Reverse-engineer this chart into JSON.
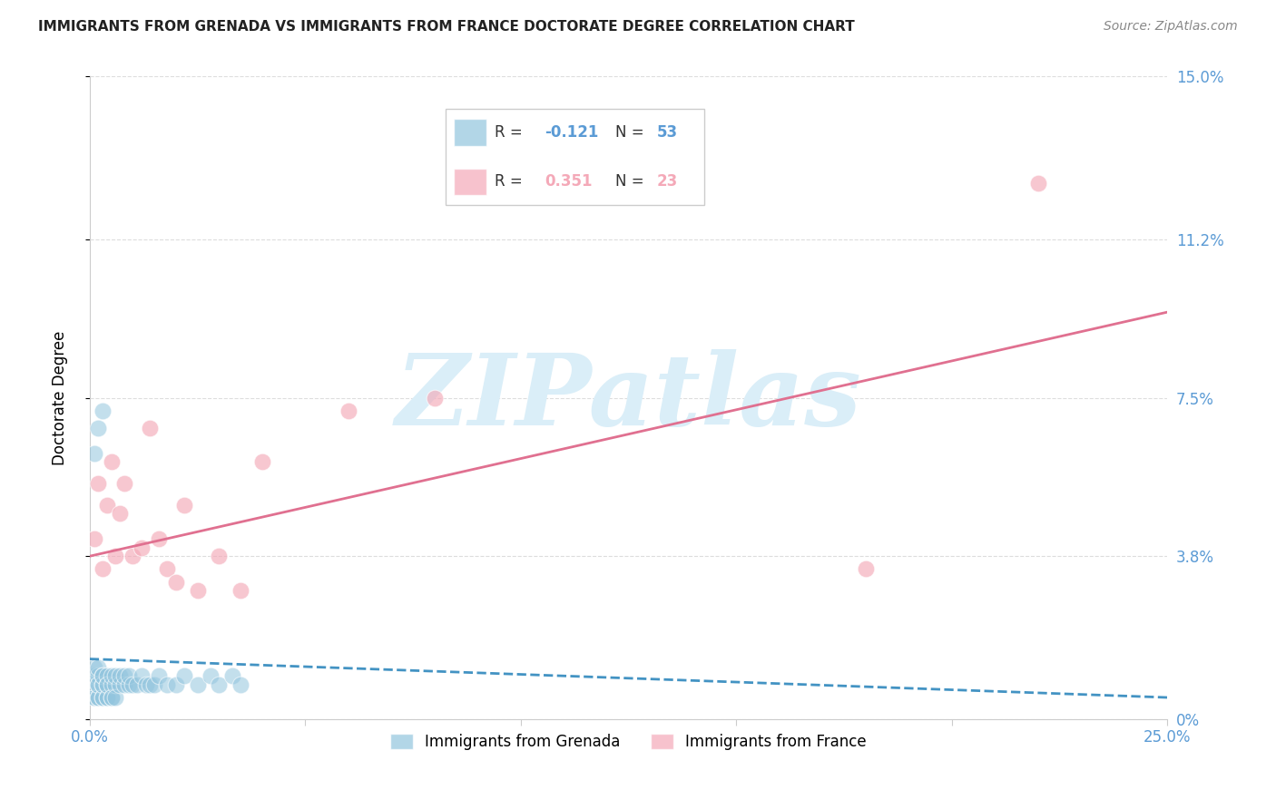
{
  "title": "IMMIGRANTS FROM GRENADA VS IMMIGRANTS FROM FRANCE DOCTORATE DEGREE CORRELATION CHART",
  "source": "Source: ZipAtlas.com",
  "ylabel": "Doctorate Degree",
  "xlim": [
    0.0,
    0.25
  ],
  "ylim": [
    0.0,
    0.15
  ],
  "xticks": [
    0.0,
    0.05,
    0.1,
    0.15,
    0.2,
    0.25
  ],
  "yticks": [
    0.0,
    0.038,
    0.075,
    0.112,
    0.15
  ],
  "ytick_labels_right": [
    "0%",
    "3.8%",
    "7.5%",
    "11.2%",
    "15.0%"
  ],
  "grenada_color": "#92c5de",
  "france_color": "#f4a9b8",
  "grenada_line_color": "#4393c3",
  "france_line_color": "#e07090",
  "axis_label_color": "#5b9bd5",
  "watermark": "ZIPatlas",
  "watermark_color": "#daeef8",
  "background_color": "#ffffff",
  "grenada_x": [
    0.001,
    0.001,
    0.001,
    0.001,
    0.001,
    0.002,
    0.002,
    0.002,
    0.002,
    0.002,
    0.002,
    0.003,
    0.003,
    0.003,
    0.003,
    0.003,
    0.003,
    0.004,
    0.004,
    0.004,
    0.004,
    0.004,
    0.005,
    0.005,
    0.005,
    0.005,
    0.006,
    0.006,
    0.006,
    0.007,
    0.007,
    0.008,
    0.008,
    0.009,
    0.009,
    0.01,
    0.011,
    0.012,
    0.013,
    0.014,
    0.015,
    0.016,
    0.018,
    0.02,
    0.022,
    0.025,
    0.028,
    0.03,
    0.033,
    0.035,
    0.001,
    0.002,
    0.003
  ],
  "grenada_y": [
    0.005,
    0.008,
    0.01,
    0.012,
    0.005,
    0.005,
    0.008,
    0.01,
    0.012,
    0.005,
    0.008,
    0.005,
    0.008,
    0.01,
    0.005,
    0.008,
    0.01,
    0.005,
    0.008,
    0.01,
    0.005,
    0.008,
    0.005,
    0.008,
    0.01,
    0.005,
    0.008,
    0.01,
    0.005,
    0.008,
    0.01,
    0.008,
    0.01,
    0.008,
    0.01,
    0.008,
    0.008,
    0.01,
    0.008,
    0.008,
    0.008,
    0.01,
    0.008,
    0.008,
    0.01,
    0.008,
    0.01,
    0.008,
    0.01,
    0.008,
    0.062,
    0.068,
    0.072
  ],
  "france_x": [
    0.001,
    0.002,
    0.003,
    0.004,
    0.005,
    0.006,
    0.007,
    0.008,
    0.01,
    0.012,
    0.014,
    0.016,
    0.018,
    0.02,
    0.022,
    0.025,
    0.03,
    0.035,
    0.04,
    0.06,
    0.08,
    0.18,
    0.22
  ],
  "france_y": [
    0.042,
    0.055,
    0.035,
    0.05,
    0.06,
    0.038,
    0.048,
    0.055,
    0.038,
    0.04,
    0.068,
    0.042,
    0.035,
    0.032,
    0.05,
    0.03,
    0.038,
    0.03,
    0.06,
    0.072,
    0.075,
    0.035,
    0.125
  ],
  "grenada_trend_x": [
    0.0,
    0.25
  ],
  "grenada_trend_y": [
    0.014,
    0.005
  ],
  "france_trend_x": [
    0.0,
    0.25
  ],
  "france_trend_y": [
    0.038,
    0.095
  ]
}
